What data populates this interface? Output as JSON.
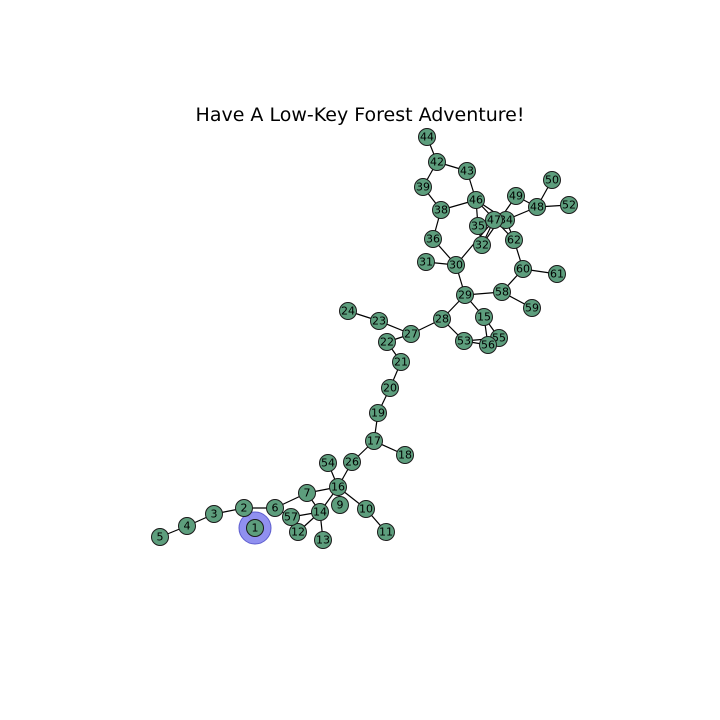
{
  "title": "Have A Low-Key Forest Adventure!",
  "colors": {
    "node": "#5d9e7d",
    "start_highlight": "#8b8bf0",
    "edge": "#000000"
  },
  "start_node": "1",
  "nodes": [
    "1",
    "2",
    "3",
    "4",
    "5",
    "6",
    "7",
    "9",
    "10",
    "11",
    "12",
    "13",
    "14",
    "15",
    "16",
    "17",
    "18",
    "19",
    "20",
    "21",
    "22",
    "23",
    "24",
    "26",
    "27",
    "28",
    "29",
    "30",
    "31",
    "32",
    "34",
    "35",
    "36",
    "38",
    "39",
    "42",
    "43",
    "44",
    "46",
    "47",
    "48",
    "49",
    "50",
    "52",
    "53",
    "54",
    "55",
    "56",
    "57",
    "58",
    "59",
    "60",
    "61",
    "62"
  ],
  "edges": [
    [
      "1",
      "2"
    ],
    [
      "2",
      "3"
    ],
    [
      "3",
      "4"
    ],
    [
      "4",
      "5"
    ],
    [
      "2",
      "6"
    ],
    [
      "6",
      "7"
    ],
    [
      "6",
      "57"
    ],
    [
      "7",
      "16"
    ],
    [
      "7",
      "14"
    ],
    [
      "57",
      "14"
    ],
    [
      "57",
      "12"
    ],
    [
      "12",
      "14"
    ],
    [
      "14",
      "13"
    ],
    [
      "14",
      "16"
    ],
    [
      "16",
      "9"
    ],
    [
      "16",
      "10"
    ],
    [
      "10",
      "11"
    ],
    [
      "16",
      "54"
    ],
    [
      "16",
      "26"
    ],
    [
      "26",
      "17"
    ],
    [
      "17",
      "18"
    ],
    [
      "17",
      "19"
    ],
    [
      "19",
      "20"
    ],
    [
      "20",
      "21"
    ],
    [
      "21",
      "22"
    ],
    [
      "22",
      "27"
    ],
    [
      "23",
      "27"
    ],
    [
      "23",
      "24"
    ],
    [
      "27",
      "28"
    ],
    [
      "28",
      "29"
    ],
    [
      "28",
      "53"
    ],
    [
      "53",
      "56"
    ],
    [
      "53",
      "55"
    ],
    [
      "15",
      "56"
    ],
    [
      "15",
      "55"
    ],
    [
      "29",
      "30"
    ],
    [
      "29",
      "58"
    ],
    [
      "29",
      "15"
    ],
    [
      "58",
      "59"
    ],
    [
      "58",
      "60"
    ],
    [
      "60",
      "61"
    ],
    [
      "60",
      "62"
    ],
    [
      "30",
      "31"
    ],
    [
      "30",
      "36"
    ],
    [
      "30",
      "47"
    ],
    [
      "36",
      "38"
    ],
    [
      "38",
      "39"
    ],
    [
      "38",
      "46"
    ],
    [
      "39",
      "42"
    ],
    [
      "42",
      "44"
    ],
    [
      "42",
      "43"
    ],
    [
      "43",
      "46"
    ],
    [
      "46",
      "35"
    ],
    [
      "46",
      "62"
    ],
    [
      "46",
      "34"
    ],
    [
      "35",
      "47"
    ],
    [
      "35",
      "32"
    ],
    [
      "47",
      "34"
    ],
    [
      "32",
      "47"
    ],
    [
      "32",
      "49"
    ],
    [
      "34",
      "48"
    ],
    [
      "34",
      "62"
    ],
    [
      "48",
      "50"
    ],
    [
      "48",
      "52"
    ],
    [
      "49",
      "48"
    ]
  ]
}
